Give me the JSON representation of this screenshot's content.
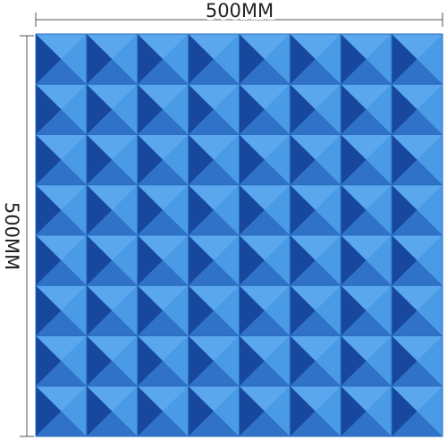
{
  "dimensions": {
    "width_label": "500MM",
    "height_label": "500MM"
  }
}
